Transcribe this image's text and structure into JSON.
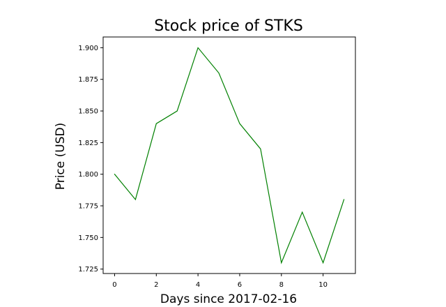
{
  "chart_data": {
    "type": "line",
    "title": "Stock price of STKS",
    "xlabel": "Days since 2017-02-16",
    "ylabel": "Price (USD)",
    "x": [
      0,
      1,
      2,
      3,
      4,
      5,
      6,
      7,
      8,
      9,
      10,
      11
    ],
    "series": [
      {
        "values": [
          1.8,
          1.78,
          1.84,
          1.85,
          1.9,
          1.88,
          1.84,
          1.82,
          1.73,
          1.77,
          1.73,
          1.78
        ]
      }
    ],
    "xlim": [
      -0.55,
      11.55
    ],
    "ylim": [
      1.7215,
      1.9085
    ],
    "x_ticks": [
      0,
      2,
      4,
      6,
      8,
      10
    ],
    "x_tick_labels": [
      "0",
      "2",
      "4",
      "6",
      "8",
      "10"
    ],
    "y_ticks": [
      1.725,
      1.75,
      1.775,
      1.8,
      1.825,
      1.85,
      1.875,
      1.9
    ],
    "y_tick_labels": [
      "1.725",
      "1.750",
      "1.775",
      "1.800",
      "1.825",
      "1.850",
      "1.875",
      "1.900"
    ],
    "grid": false,
    "colors": {
      "line": "#008000",
      "axes": "#000000"
    }
  }
}
